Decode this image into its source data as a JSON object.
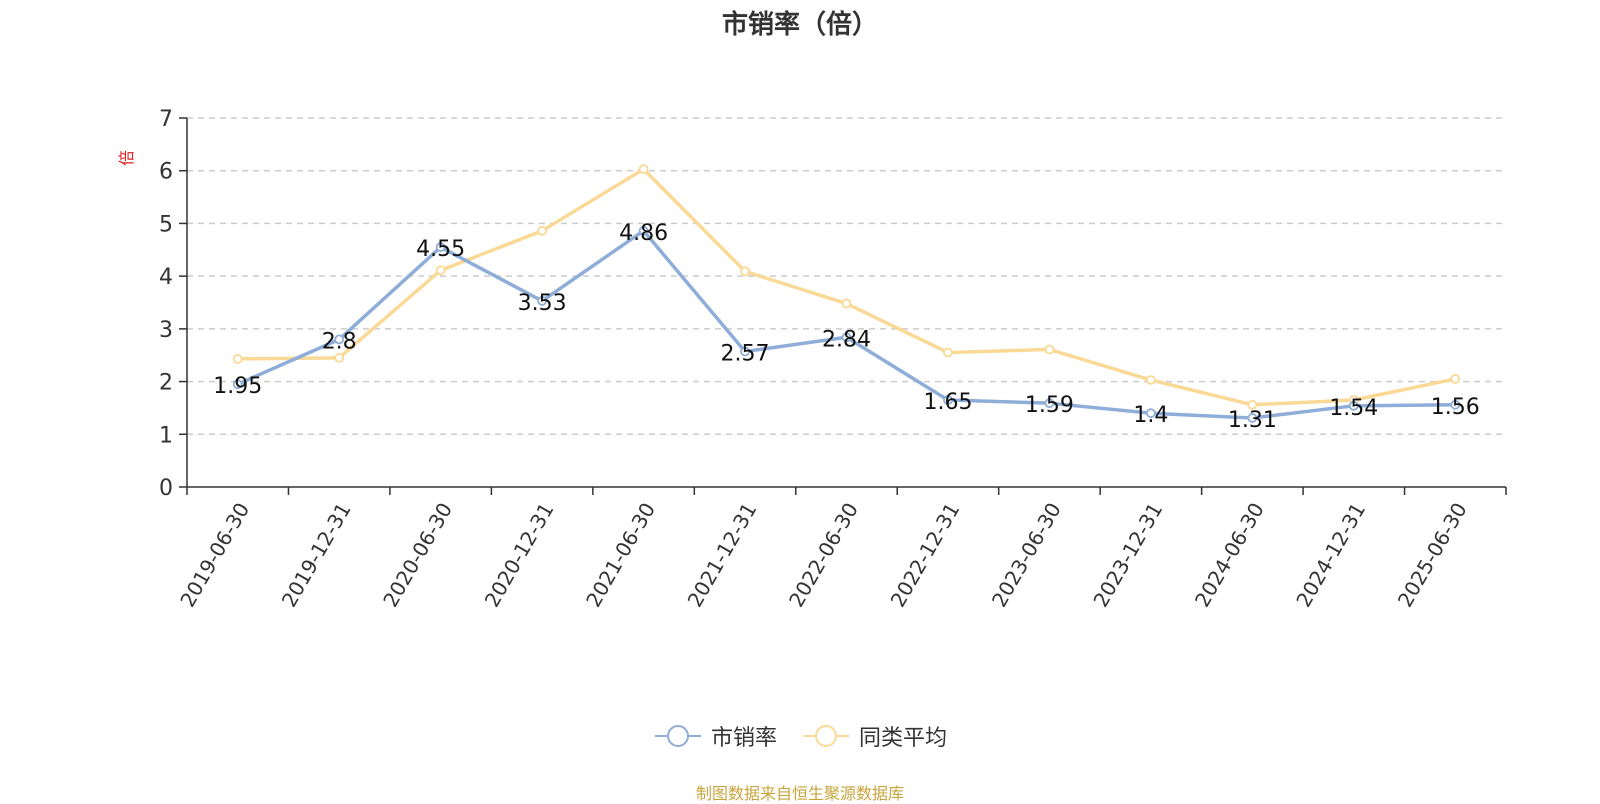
{
  "chart_data": {
    "type": "line",
    "title": "市销率（倍）",
    "ylabel": "倍",
    "xlabel": "",
    "categories": [
      "2019-06-30",
      "2019-12-31",
      "2020-06-30",
      "2020-12-31",
      "2021-06-30",
      "2021-12-31",
      "2022-06-30",
      "2022-12-31",
      "2023-06-30",
      "2023-12-31",
      "2024-06-30",
      "2024-12-31",
      "2025-06-30"
    ],
    "ylim": [
      0,
      7
    ],
    "yticks": [
      0,
      1,
      2,
      3,
      4,
      5,
      6,
      7
    ],
    "grid": true,
    "legend_position": "bottom",
    "series": [
      {
        "name": "市销率",
        "color": "#8eadd8",
        "values": [
          1.95,
          2.8,
          4.55,
          3.53,
          4.86,
          2.57,
          2.84,
          1.65,
          1.59,
          1.4,
          1.31,
          1.54,
          1.56
        ],
        "labels": [
          "1.95",
          "2.8",
          "4.55",
          "3.53",
          "4.86",
          "2.57",
          "2.84",
          "1.65",
          "1.59",
          "1.4",
          "1.31",
          "1.54",
          "1.56"
        ]
      },
      {
        "name": "同类平均",
        "color": "#fad996",
        "values": [
          2.43,
          2.45,
          4.11,
          4.86,
          6.03,
          4.09,
          3.48,
          2.55,
          2.61,
          2.03,
          1.56,
          1.65,
          2.05
        ]
      }
    ]
  },
  "source_text": "制图数据来自恒生聚源数据库",
  "source_color": "#c8a43c",
  "ylabel_color": "#e02020"
}
